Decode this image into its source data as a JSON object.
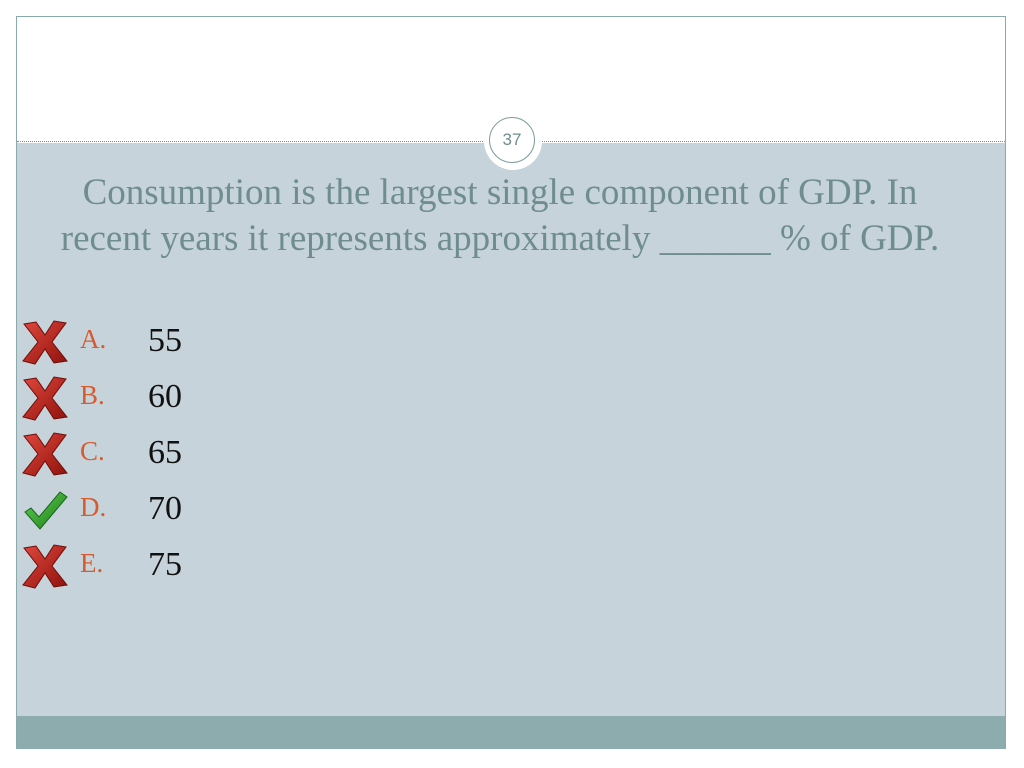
{
  "slide": {
    "page_number": "37",
    "question": "Consumption is the largest single component of GDP. In recent years it represents approximately ______ % of GDP."
  },
  "options": [
    {
      "letter": "A.",
      "value": "55",
      "status_icon": "x-mark-icon",
      "correct": false
    },
    {
      "letter": "B.",
      "value": "60",
      "status_icon": "x-mark-icon",
      "correct": false
    },
    {
      "letter": "C.",
      "value": "65",
      "status_icon": "x-mark-icon",
      "correct": false
    },
    {
      "letter": "D.",
      "value": "70",
      "status_icon": "check-mark-icon",
      "correct": true
    },
    {
      "letter": "E.",
      "value": "75",
      "status_icon": "x-mark-icon",
      "correct": false
    }
  ],
  "colors": {
    "content_background": "#c6d3da",
    "bottom_bar": "#8cacad",
    "question_text": "#6f8d90",
    "option_letter": "#d45c31",
    "x_mark": "#b01a14",
    "check_mark": "#2e9a2a"
  }
}
